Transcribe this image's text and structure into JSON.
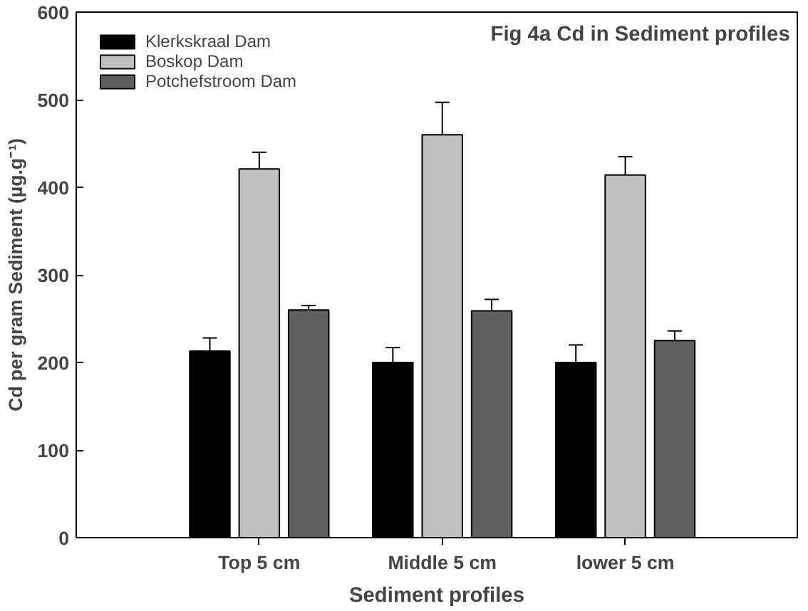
{
  "chart_data": {
    "type": "bar",
    "title": "Fig 4a Cd in Sediment profiles",
    "xlabel": "Sediment profiles",
    "ylabel": "Cd per gram Sediment (µg.g⁻¹)",
    "categories": [
      "Top 5 cm",
      "Middle 5 cm",
      "lower 5 cm"
    ],
    "series": [
      {
        "name": "Klerkskraal Dam",
        "color": "#000000",
        "values": [
          213,
          200,
          200
        ],
        "errors": [
          15,
          17,
          20
        ]
      },
      {
        "name": "Boskop Dam",
        "color": "#c0c0c0",
        "values": [
          421,
          460,
          414
        ],
        "errors": [
          19,
          37,
          21
        ]
      },
      {
        "name": "Potchefstroom Dam",
        "color": "#606060",
        "values": [
          260,
          259,
          225
        ],
        "errors": [
          5,
          13,
          11
        ]
      }
    ],
    "ylim": [
      0,
      600
    ],
    "yticks": [
      0,
      100,
      200,
      300,
      400,
      500,
      600
    ],
    "grid": false,
    "legend": "top left"
  }
}
